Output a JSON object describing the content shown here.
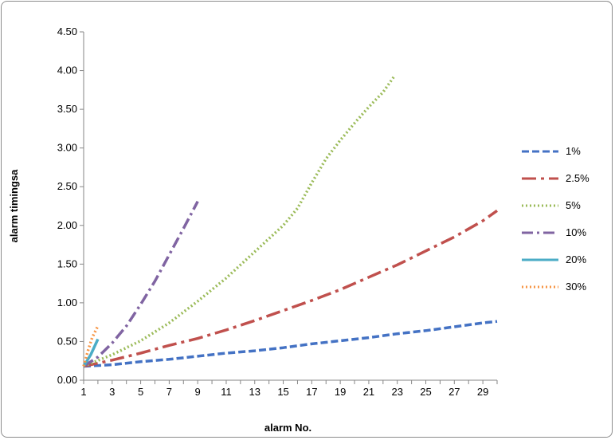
{
  "chart_data": {
    "type": "line",
    "title": "",
    "xlabel": "alarm No.",
    "ylabel": "alarm timingsa",
    "xlim": [
      1,
      30
    ],
    "ylim": [
      0,
      4.5
    ],
    "x_ticks": [
      1,
      3,
      5,
      7,
      9,
      11,
      13,
      15,
      17,
      19,
      21,
      23,
      25,
      27,
      29
    ],
    "y_ticks": [
      "0.00",
      "0.50",
      "1.00",
      "1.50",
      "2.00",
      "2.50",
      "3.00",
      "3.50",
      "4.00",
      "4.50"
    ],
    "grid": false,
    "legend_position": "right",
    "series": [
      {
        "name": "1%",
        "color": "#4472C4",
        "dash": "dashed",
        "points": [
          [
            1,
            0.18
          ],
          [
            3,
            0.2
          ],
          [
            5,
            0.24
          ],
          [
            7,
            0.27
          ],
          [
            9,
            0.31
          ],
          [
            11,
            0.35
          ],
          [
            13,
            0.38
          ],
          [
            15,
            0.42
          ],
          [
            17,
            0.47
          ],
          [
            19,
            0.51
          ],
          [
            21,
            0.55
          ],
          [
            23,
            0.6
          ],
          [
            25,
            0.64
          ],
          [
            27,
            0.69
          ],
          [
            29,
            0.74
          ],
          [
            30,
            0.76
          ]
        ]
      },
      {
        "name": "2.5%",
        "color": "#C0504D",
        "dash": "dash-dot-long",
        "points": [
          [
            1,
            0.18
          ],
          [
            3,
            0.26
          ],
          [
            5,
            0.35
          ],
          [
            7,
            0.45
          ],
          [
            9,
            0.54
          ],
          [
            11,
            0.65
          ],
          [
            13,
            0.77
          ],
          [
            15,
            0.9
          ],
          [
            17,
            1.03
          ],
          [
            19,
            1.17
          ],
          [
            21,
            1.33
          ],
          [
            23,
            1.49
          ],
          [
            25,
            1.67
          ],
          [
            27,
            1.85
          ],
          [
            29,
            2.06
          ],
          [
            30,
            2.19
          ]
        ]
      },
      {
        "name": "5%",
        "color": "#9BBB59",
        "dash": "dotted",
        "points": [
          [
            1,
            0.18
          ],
          [
            3,
            0.33
          ],
          [
            5,
            0.51
          ],
          [
            7,
            0.74
          ],
          [
            9,
            1.02
          ],
          [
            11,
            1.32
          ],
          [
            13,
            1.66
          ],
          [
            15,
            2.0
          ],
          [
            16,
            2.22
          ],
          [
            17,
            2.55
          ],
          [
            18,
            2.86
          ],
          [
            19,
            3.1
          ],
          [
            20,
            3.32
          ],
          [
            21,
            3.53
          ],
          [
            22,
            3.72
          ],
          [
            22.8,
            3.93
          ]
        ]
      },
      {
        "name": "10%",
        "color": "#8064A2",
        "dash": "dash-dot",
        "points": [
          [
            1,
            0.18
          ],
          [
            2,
            0.3
          ],
          [
            3,
            0.48
          ],
          [
            4,
            0.7
          ],
          [
            5,
            0.98
          ],
          [
            6,
            1.28
          ],
          [
            7,
            1.62
          ],
          [
            8,
            1.96
          ],
          [
            9,
            2.31
          ]
        ]
      },
      {
        "name": "20%",
        "color": "#4BACC6",
        "dash": "solid",
        "points": [
          [
            1,
            0.18
          ],
          [
            1.5,
            0.33
          ],
          [
            2,
            0.53
          ]
        ]
      },
      {
        "name": "30%",
        "color": "#F79646",
        "dash": "dotted",
        "points": [
          [
            1,
            0.18
          ],
          [
            1.3,
            0.38
          ],
          [
            1.6,
            0.55
          ],
          [
            2,
            0.7
          ]
        ]
      }
    ]
  }
}
